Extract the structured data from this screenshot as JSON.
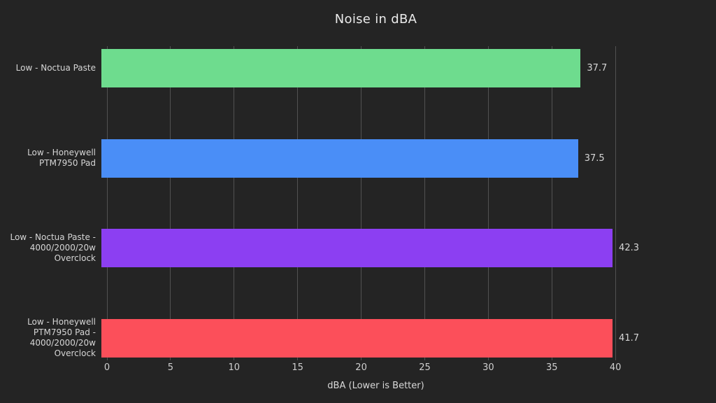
{
  "chart_data": {
    "type": "bar",
    "orientation": "horizontal",
    "title": "Noise in dBA",
    "xlabel": "dBA (Lower is Better)",
    "categories": [
      "Low - Noctua Paste",
      "Low - Honeywell PTM7950 Pad",
      "Low - Noctua Paste - 4000/2000/20w Overclock",
      "Low - Honeywell PTM7950 Pad - 4000/2000/20w Overclock"
    ],
    "values": [
      37.7,
      37.5,
      42.3,
      41.7
    ],
    "value_labels": [
      "37.7",
      "37.5",
      "42.3",
      "41.7"
    ],
    "bar_colors": [
      "#6edc8e",
      "#4a8ef7",
      "#8c3ff2",
      "#fc4f5a"
    ],
    "xlim": [
      0,
      42.3
    ],
    "xticks": [
      0,
      5,
      10,
      15,
      20,
      25,
      30,
      35,
      40
    ],
    "grid": true,
    "legend": "none",
    "background_color": "#242424",
    "gridline_color": "#525252",
    "text_color": "#d9d9d9"
  }
}
